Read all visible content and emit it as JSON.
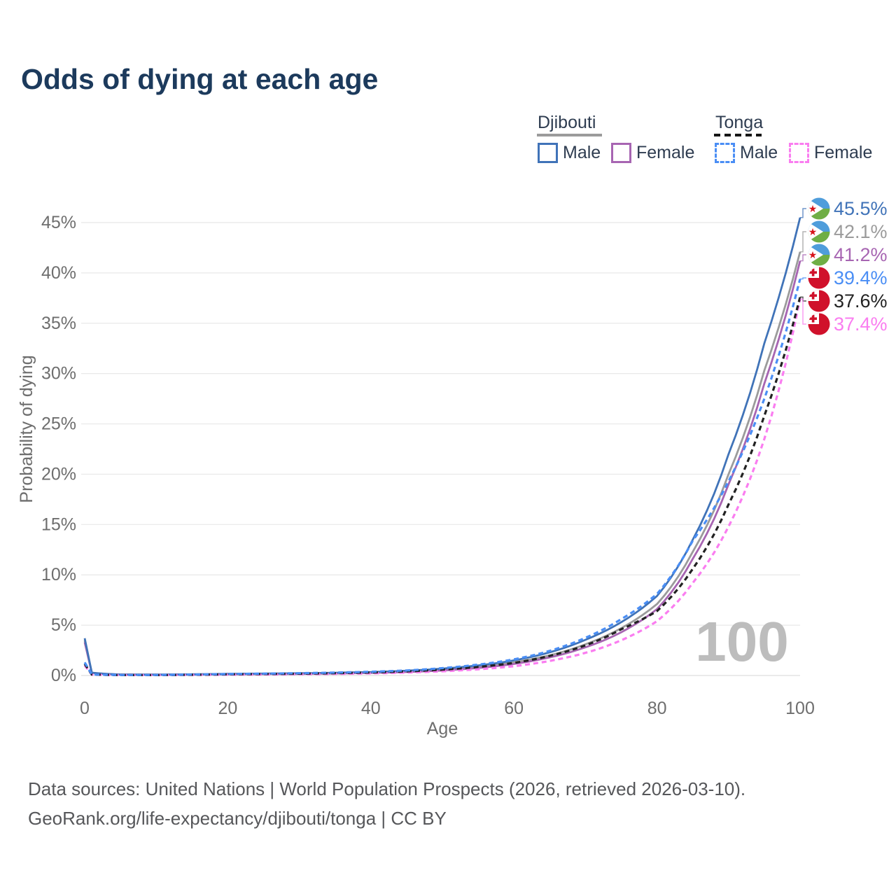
{
  "title": "Odds of dying at each age",
  "legend": {
    "groups": [
      {
        "name": "Djibouti",
        "style": "solid",
        "items": [
          {
            "label": "Male",
            "series_index": 0
          },
          {
            "label": "Female",
            "series_index": 2
          }
        ]
      },
      {
        "name": "Tonga",
        "style": "dashed",
        "items": [
          {
            "label": "Male",
            "series_index": 3
          },
          {
            "label": "Female",
            "series_index": 5
          }
        ]
      }
    ]
  },
  "watermark": "100",
  "footer": {
    "line1": "Data sources: United Nations | World Population Prospects (2026, retrieved 2026-03-10).",
    "line2": "GeoRank.org/life-expectancy/djibouti/tonga | CC BY"
  },
  "chart_data": {
    "type": "line",
    "title": "Odds of dying at each age",
    "xlabel": "Age",
    "ylabel": "Probability of dying",
    "x_ticks": [
      0,
      20,
      40,
      60,
      80,
      100
    ],
    "y_ticks_percent": [
      0,
      5,
      10,
      15,
      20,
      25,
      30,
      35,
      40,
      45
    ],
    "xlim": [
      0,
      100
    ],
    "ylim_percent": [
      0,
      47
    ],
    "grid": true,
    "legend_position": "top-right",
    "ages": [
      0,
      1,
      5,
      10,
      15,
      20,
      25,
      30,
      35,
      40,
      45,
      50,
      55,
      60,
      65,
      70,
      75,
      80,
      85,
      90,
      95,
      100
    ],
    "series": [
      {
        "name": "Djibouti Male",
        "country": "Djibouti",
        "sex": "Male",
        "flag": "djibouti",
        "color": "#4073b8",
        "dashed": false,
        "end_label": "45.5%",
        "end_value_percent": 45.5,
        "values_percent": [
          3.7,
          0.28,
          0.1,
          0.09,
          0.12,
          0.16,
          0.19,
          0.22,
          0.27,
          0.34,
          0.47,
          0.68,
          1.0,
          1.5,
          2.3,
          3.55,
          5.3,
          7.9,
          13.5,
          22.0,
          33.0,
          45.5
        ]
      },
      {
        "name": "Djibouti Both sexes",
        "country": "Djibouti",
        "sex": "Both",
        "flag": "djibouti",
        "color": "#9b9b9b",
        "dashed": false,
        "end_label": "42.1%",
        "end_value_percent": 42.1,
        "values_percent": [
          3.5,
          0.26,
          0.09,
          0.08,
          0.11,
          0.14,
          0.16,
          0.19,
          0.23,
          0.29,
          0.4,
          0.58,
          0.86,
          1.3,
          2.0,
          3.1,
          4.7,
          7.1,
          12.3,
          20.0,
          30.3,
          42.1
        ]
      },
      {
        "name": "Djibouti Female",
        "country": "Djibouti",
        "sex": "Female",
        "flag": "djibouti",
        "color": "#a765b2",
        "dashed": false,
        "end_label": "41.2%",
        "end_value_percent": 41.2,
        "values_percent": [
          3.3,
          0.24,
          0.09,
          0.07,
          0.09,
          0.12,
          0.14,
          0.16,
          0.2,
          0.26,
          0.35,
          0.5,
          0.75,
          1.15,
          1.8,
          2.8,
          4.3,
          6.6,
          11.6,
          19.0,
          29.0,
          41.2
        ]
      },
      {
        "name": "Tonga Male",
        "country": "Tonga",
        "sex": "Male",
        "flag": "tonga",
        "color": "#4a8ef5",
        "dashed": true,
        "end_label": "39.4%",
        "end_value_percent": 39.4,
        "values_percent": [
          1.3,
          0.1,
          0.05,
          0.05,
          0.09,
          0.15,
          0.19,
          0.23,
          0.29,
          0.37,
          0.5,
          0.73,
          1.08,
          1.6,
          2.45,
          3.75,
          5.6,
          8.1,
          13.4,
          19.3,
          27.5,
          39.4
        ]
      },
      {
        "name": "Tonga Both sexes",
        "country": "Tonga",
        "sex": "Both",
        "flag": "tonga",
        "color": "#222222",
        "dashed": true,
        "end_label": "37.6%",
        "end_value_percent": 37.6,
        "values_percent": [
          1.15,
          0.09,
          0.04,
          0.04,
          0.07,
          0.12,
          0.15,
          0.18,
          0.23,
          0.3,
          0.41,
          0.58,
          0.85,
          1.25,
          1.95,
          3.0,
          4.6,
          6.4,
          10.6,
          17.0,
          25.8,
          37.6
        ]
      },
      {
        "name": "Tonga Female",
        "country": "Tonga",
        "sex": "Female",
        "flag": "tonga",
        "color": "#fa7df0",
        "dashed": true,
        "end_label": "37.4%",
        "end_value_percent": 37.4,
        "values_percent": [
          1.0,
          0.08,
          0.04,
          0.04,
          0.06,
          0.08,
          0.1,
          0.13,
          0.16,
          0.21,
          0.29,
          0.42,
          0.62,
          0.92,
          1.45,
          2.25,
          3.5,
          5.4,
          9.2,
          14.8,
          23.5,
          37.4
        ]
      }
    ]
  }
}
